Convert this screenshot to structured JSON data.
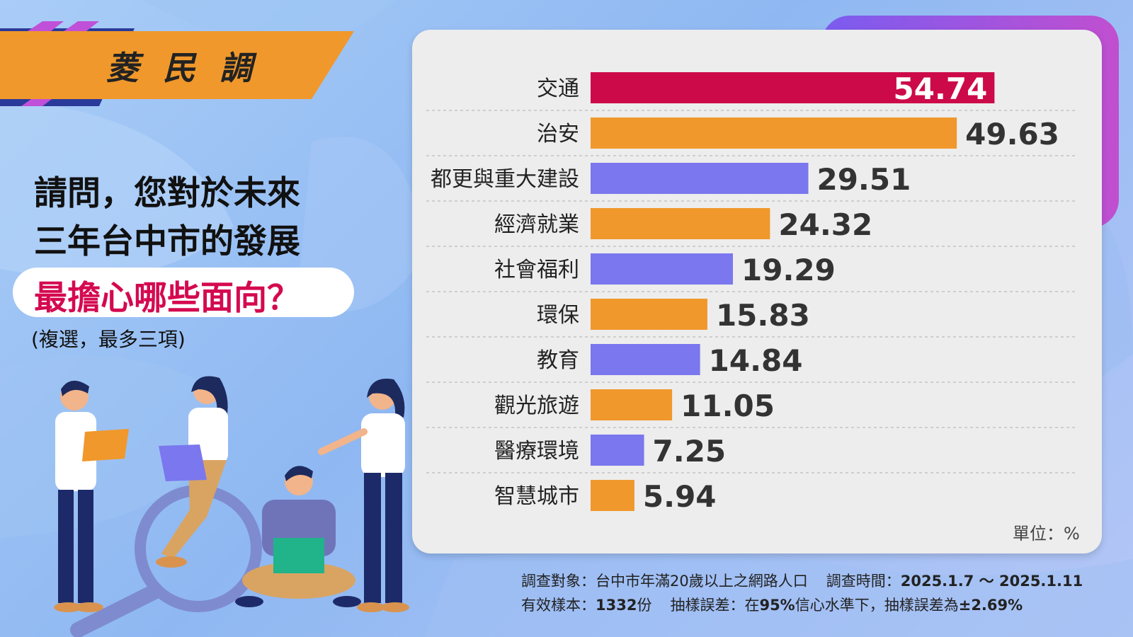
{
  "banner": {
    "title": "菱民調"
  },
  "question": {
    "line1": "請問，您對於未來",
    "line2": "三年台中市的發展",
    "highlight": "最擔心哪些面向？",
    "note": "(複選，最多三項)"
  },
  "footer": {
    "target_label": "調查對象：",
    "target_value": "台中市年滿20歲以上之網路人口",
    "time_label": "調查時間：",
    "time_value": "2025.1.7 ～ 2025.1.11",
    "sample_label": "有效樣本：",
    "sample_value": "1332",
    "sample_unit": "份",
    "error_label": "抽樣誤差：",
    "error_value_prefix": "在",
    "error_value_conf": "95%",
    "error_value_mid": "信心水準下，抽樣誤差為",
    "error_value_pct": "±2.69%"
  },
  "chart_data": {
    "type": "bar",
    "orientation": "horizontal",
    "categories": [
      "交通",
      "治安",
      "都更與重大建設",
      "經濟就業",
      "社會福利",
      "環保",
      "教育",
      "觀光旅遊",
      "醫療環境",
      "智慧城市"
    ],
    "values": [
      54.74,
      49.63,
      29.51,
      24.32,
      19.29,
      15.83,
      14.84,
      11.05,
      7.25,
      5.94
    ],
    "value_labels": [
      "54.74",
      "49.63",
      "29.51",
      "24.32",
      "19.29",
      "15.83",
      "14.84",
      "11.05",
      "7.25",
      "5.94"
    ],
    "unit_label": "單位：%",
    "xlim": [
      0,
      60
    ],
    "grid": "horizontal dashed separators",
    "colors": {
      "top": "#cc0a4a",
      "orange": "#f0982b",
      "purple": "#7b77ee",
      "value_text": "#333333",
      "top_value_text": "#ffffff"
    }
  }
}
